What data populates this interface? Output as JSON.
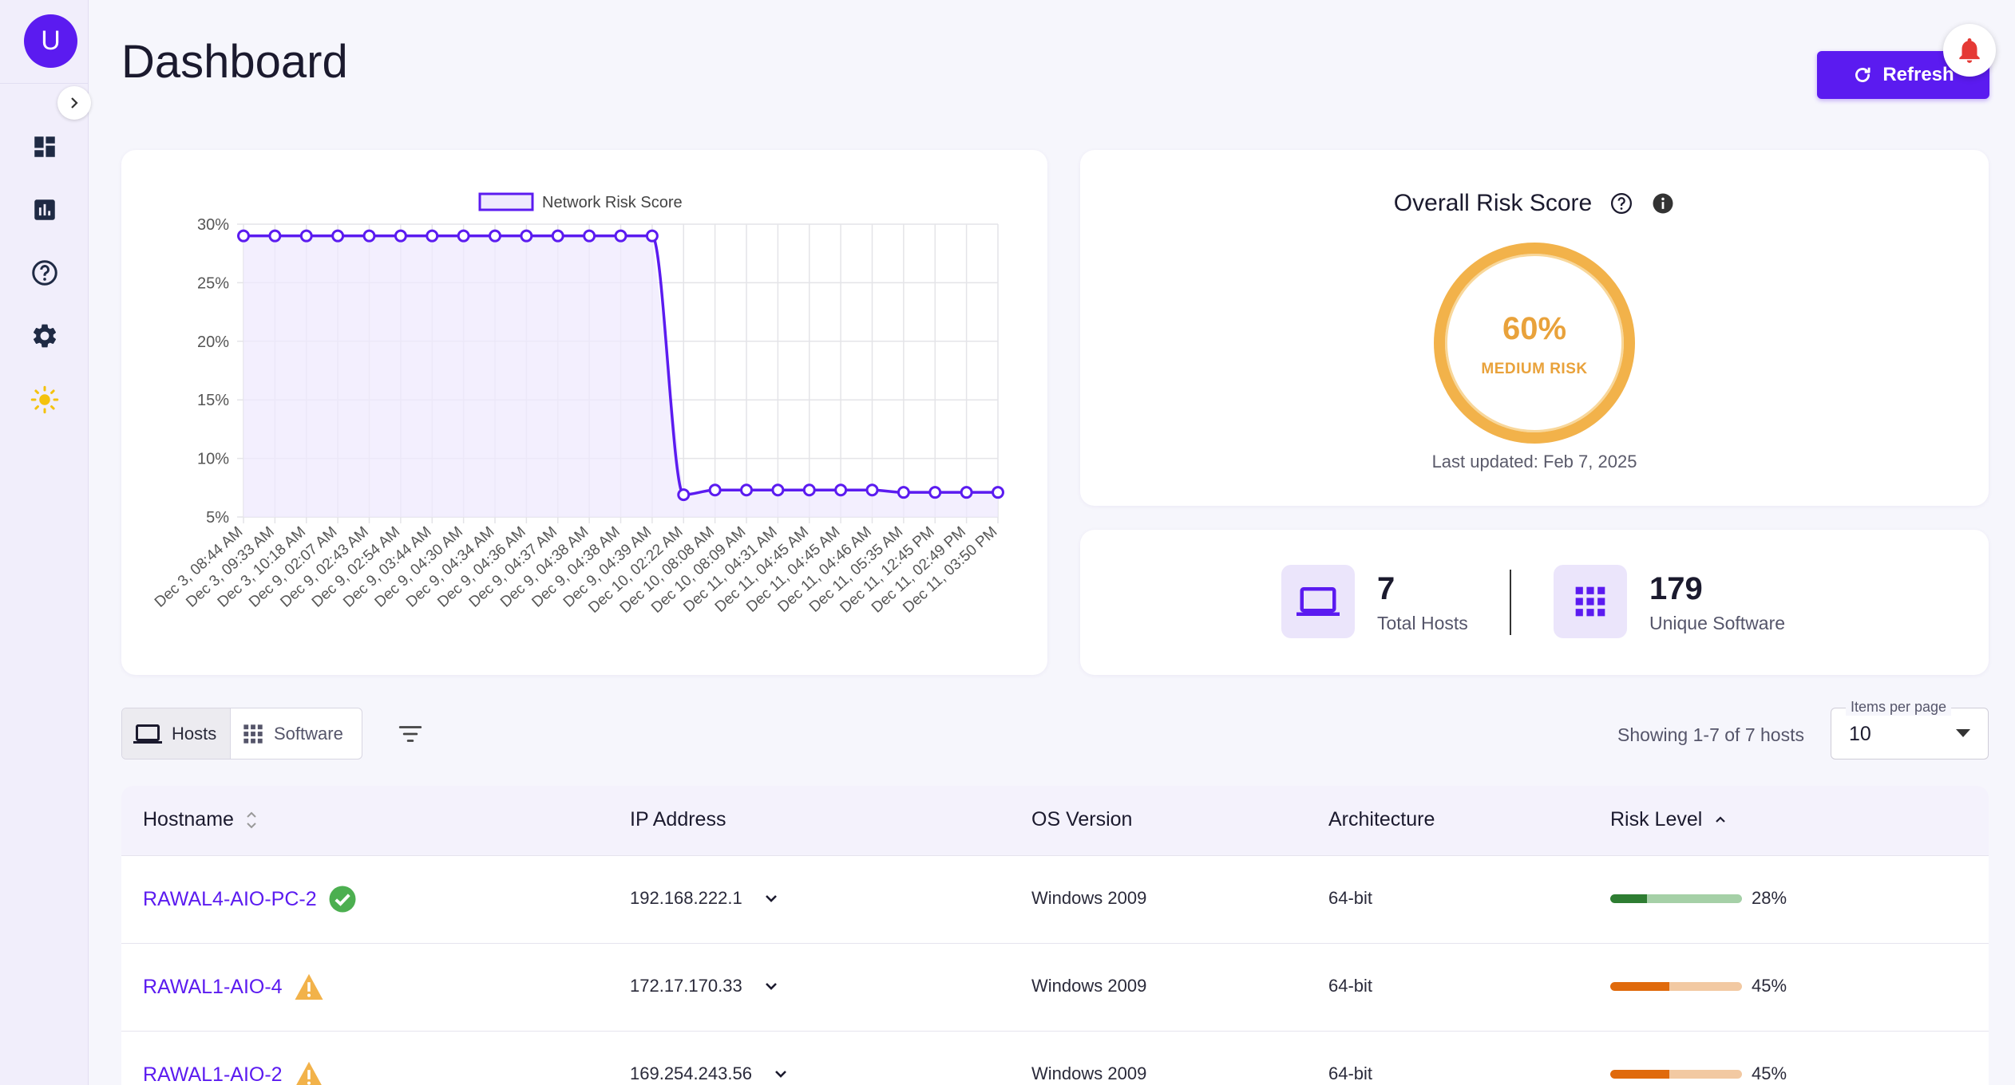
{
  "sidebar": {
    "avatar_initial": "U",
    "items": [
      {
        "name": "dashboard-icon"
      },
      {
        "name": "bar-chart-icon"
      },
      {
        "name": "help-icon"
      },
      {
        "name": "gear-icon"
      },
      {
        "name": "sun-icon"
      }
    ]
  },
  "header": {
    "title": "Dashboard",
    "refresh_label": "Refresh"
  },
  "chart_data": {
    "type": "line",
    "title": "",
    "legend": [
      "Network Risk Score"
    ],
    "legend_position": "top",
    "xlabel": "",
    "ylabel": "",
    "ylim": [
      5,
      30
    ],
    "yticks": [
      "30%",
      "25%",
      "20%",
      "15%",
      "10%",
      "5%"
    ],
    "grid": true,
    "colors": {
      "line": "#5b1bf0",
      "fill": "#efeafd"
    },
    "series": [
      {
        "name": "Network Risk Score",
        "x": [
          "Dec 3, 08:44 AM",
          "Dec 3, 09:33 AM",
          "Dec 3, 10:18 AM",
          "Dec 9, 02:07 AM",
          "Dec 9, 02:43 AM",
          "Dec 9, 02:54 AM",
          "Dec 9, 03:44 AM",
          "Dec 9, 04:30 AM",
          "Dec 9, 04:34 AM",
          "Dec 9, 04:36 AM",
          "Dec 9, 04:37 AM",
          "Dec 9, 04:38 AM",
          "Dec 9, 04:38 AM",
          "Dec 9, 04:39 AM",
          "Dec 10, 02:22 AM",
          "Dec 10, 08:08 AM",
          "Dec 10, 08:09 AM",
          "Dec 11, 04:31 AM",
          "Dec 11, 04:45 AM",
          "Dec 11, 04:45 AM",
          "Dec 11, 04:46 AM",
          "Dec 11, 05:35 AM",
          "Dec 11, 12:45 PM",
          "Dec 11, 02:49 PM",
          "Dec 11, 03:50 PM"
        ],
        "values": [
          29,
          29,
          29,
          29,
          29,
          29,
          29,
          29,
          29,
          29,
          29,
          29,
          29,
          29,
          6.9,
          7.3,
          7.3,
          7.3,
          7.3,
          7.3,
          7.3,
          7.1,
          7.1,
          7.1,
          7.1
        ]
      }
    ]
  },
  "risk": {
    "title": "Overall Risk Score",
    "value": "60%",
    "level": "MEDIUM RISK",
    "last_updated": "Last updated: Feb 7, 2025",
    "color": "#f2b24a"
  },
  "stats": {
    "hosts_value": "7",
    "hosts_label": "Total Hosts",
    "software_value": "179",
    "software_label": "Unique Software"
  },
  "toolbar": {
    "hosts_tab": "Hosts",
    "software_tab": "Software",
    "showing": "Showing 1-7 of 7 hosts",
    "items_per_page_label": "Items per page",
    "items_per_page_value": "10"
  },
  "table": {
    "columns": [
      "Hostname",
      "IP Address",
      "OS Version",
      "Architecture",
      "Risk Level"
    ],
    "rows": [
      {
        "hostname": "RAWAL4-AIO-PC-2",
        "status": "ok",
        "ip": "192.168.222.1",
        "os": "Windows 2009",
        "arch": "64-bit",
        "risk": "28%",
        "risk_fraction": 0.28,
        "bar_color": "#2e7d32",
        "track_color": "#a5d0a7"
      },
      {
        "hostname": "RAWAL1-AIO-4",
        "status": "warning",
        "ip": "172.17.170.33",
        "os": "Windows 2009",
        "arch": "64-bit",
        "risk": "45%",
        "risk_fraction": 0.45,
        "bar_color": "#e06a0c",
        "track_color": "#f2c9a2"
      },
      {
        "hostname": "RAWAL1-AIO-2",
        "status": "warning",
        "ip": "169.254.243.56",
        "os": "Windows 2009",
        "arch": "64-bit",
        "risk": "45%",
        "risk_fraction": 0.45,
        "bar_color": "#e06a0c",
        "track_color": "#f2c9a2"
      }
    ]
  }
}
